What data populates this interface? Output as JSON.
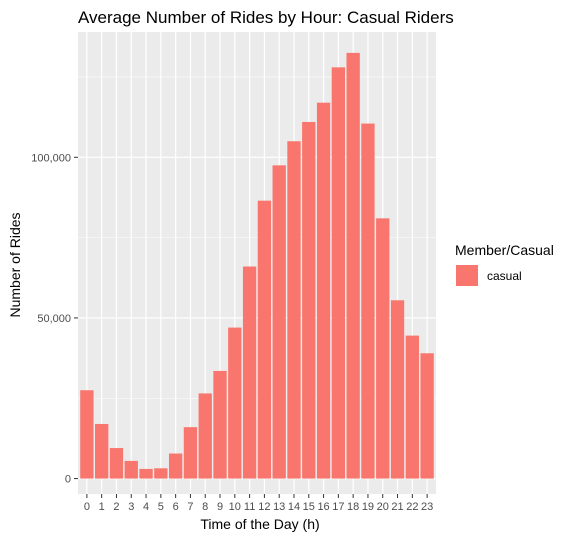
{
  "chart_data": {
    "type": "bar",
    "title": "Average Number of Rides by Hour: Casual Riders",
    "xlabel": "Time of the Day (h)",
    "ylabel": "Number of Rides",
    "categories": [
      "0",
      "1",
      "2",
      "3",
      "4",
      "5",
      "6",
      "7",
      "8",
      "9",
      "10",
      "11",
      "12",
      "13",
      "14",
      "15",
      "16",
      "17",
      "18",
      "19",
      "20",
      "21",
      "22",
      "23"
    ],
    "series": [
      {
        "name": "casual",
        "values": [
          27500,
          17000,
          9500,
          5500,
          3000,
          3200,
          7800,
          16000,
          26500,
          33500,
          47000,
          66000,
          86500,
          97500,
          105000,
          111000,
          117000,
          128000,
          132500,
          110500,
          81000,
          55500,
          44500,
          39000
        ],
        "color": "#F8766D"
      }
    ],
    "ylim": [
      -4800,
      139000
    ],
    "yticks": [
      0,
      50000,
      100000
    ],
    "ytick_labels": [
      "0",
      "50,000",
      "100,000"
    ],
    "grid": true,
    "panel_background": "#EBEBEB",
    "grid_color": "#FFFFFF",
    "legend": {
      "title": "Member/Casual",
      "position": "right"
    }
  }
}
